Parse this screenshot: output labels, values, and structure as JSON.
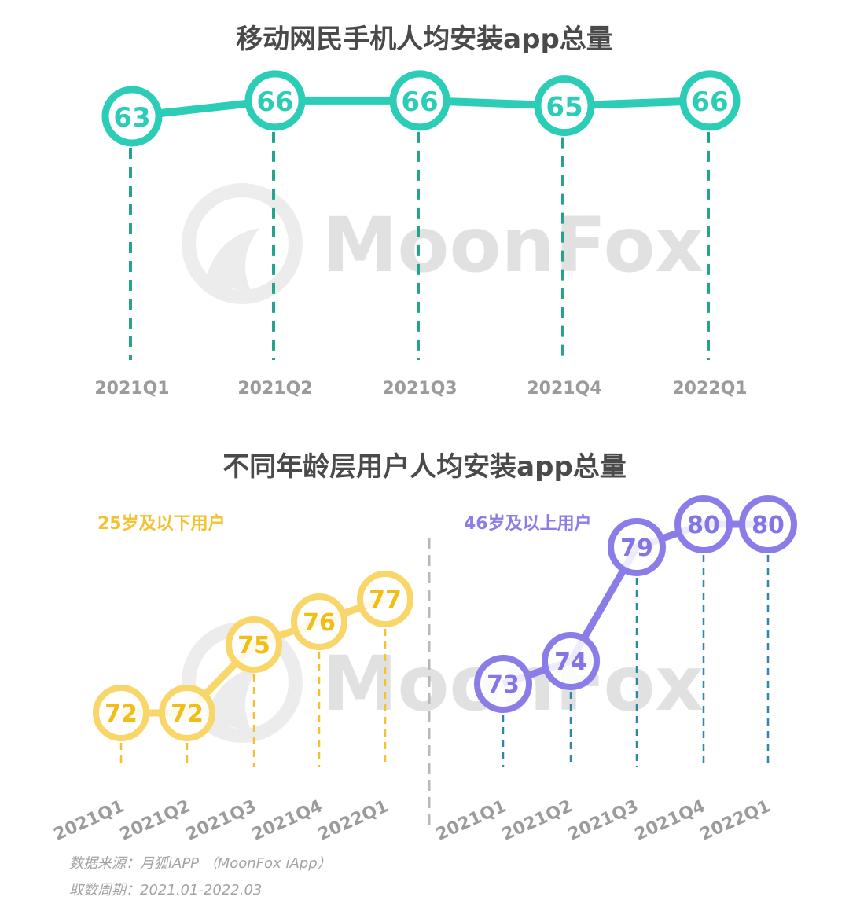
{
  "charts": {
    "title_top": "移动网民手机人均安装app总量",
    "title_bottom": "不同年龄层用户人均安装app总量"
  },
  "watermark": "MoonFox",
  "footnote": {
    "source": "数据来源：月狐iAPP （MoonFox iApp）",
    "period": "取数周期：2021.01-2022.03"
  },
  "colors": {
    "teal": "#2ccdb7",
    "teal_dash": "#27a38d",
    "yellow": "#f9d669",
    "yellow_text": "#f0be14",
    "yellow_dash": "#f2c230",
    "purple": "#8b7de8",
    "purple_text": "#8275e6",
    "purple_dash": "#2f86a8",
    "tick": "#9b9b9b",
    "divider": "#b8b8b8"
  },
  "chart_data": [
    {
      "type": "line",
      "title": "移动网民手机人均安装app总量",
      "categories": [
        "2021Q1",
        "2021Q2",
        "2021Q3",
        "2021Q4",
        "2022Q1"
      ],
      "series": [
        {
          "values": [
            63,
            66,
            66,
            65,
            66
          ]
        }
      ]
    },
    {
      "type": "line",
      "title": "不同年龄层用户人均安装app总量",
      "categories": [
        "2021Q1",
        "2021Q2",
        "2021Q3",
        "2021Q4",
        "2022Q1"
      ],
      "series": [
        {
          "name": "25岁及以下用户",
          "values": [
            72,
            72,
            75,
            76,
            77
          ]
        },
        {
          "name": "46岁及以上用户",
          "values": [
            73,
            74,
            79,
            80,
            80
          ]
        }
      ]
    }
  ]
}
